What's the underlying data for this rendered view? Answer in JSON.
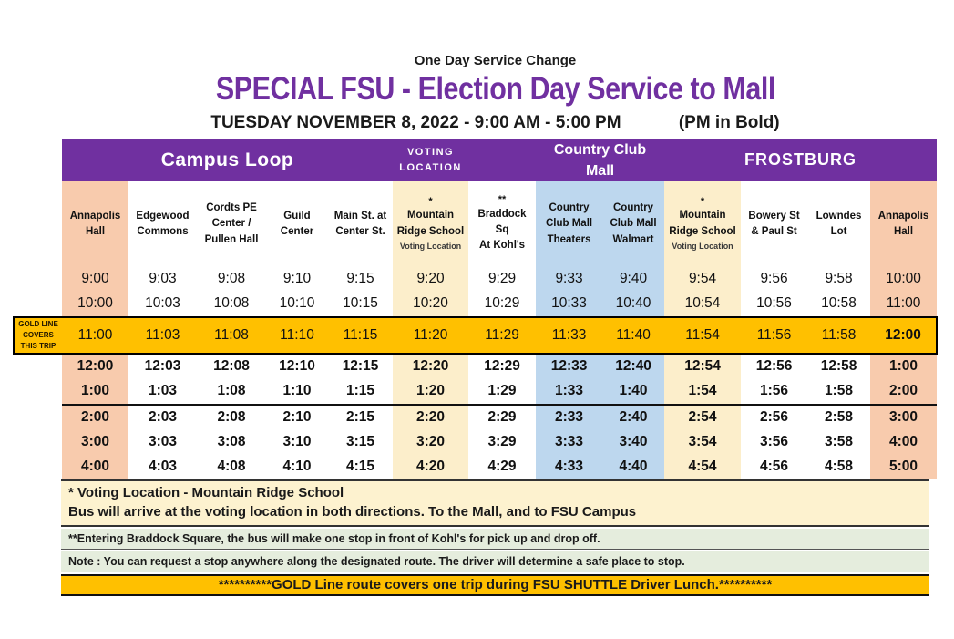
{
  "header": {
    "kicker": "One Day Service Change",
    "title": "SPECIAL FSU - Election Day Service to Mall",
    "date_line": "TUESDAY NOVEMBER 8, 2022 - 9:00 AM - 5:00 PM",
    "pm_note": "(PM in Bold)"
  },
  "colors": {
    "header_purple": "#7030A0",
    "title_purple": "#7030A0",
    "gold": "#FFC000",
    "peach_column": "#F8CBAD",
    "cream_column": "#FCEECB",
    "mall_blue_column": "#BDD7EE",
    "note_cream": "#FDF2CF",
    "note_green": "#E5EDDD"
  },
  "table": {
    "group_headers": [
      {
        "label": "Campus Loop",
        "span": 5
      },
      {
        "label": "VOTING LOCATION",
        "span": 1
      },
      {
        "label": "",
        "span": 1
      },
      {
        "label": "Country Club Mall",
        "span": 2
      },
      {
        "label": "FROSTBURG",
        "span": 4
      }
    ],
    "columns": [
      {
        "id": "annapolis-hall-depart",
        "lines": [
          "Annapolis",
          "Hall"
        ],
        "bg": "peach"
      },
      {
        "id": "edgewood-commons",
        "lines": [
          "Edgewood",
          "Commons"
        ],
        "bg": "white"
      },
      {
        "id": "cordts-pe-center-pullen-hall",
        "lines": [
          "Cordts PE",
          "Center /",
          "Pullen Hall"
        ],
        "bg": "white"
      },
      {
        "id": "guild-center",
        "lines": [
          "Guild",
          "Center"
        ],
        "bg": "white"
      },
      {
        "id": "main-st-at-center-st",
        "lines": [
          "Main St. at",
          "Center St."
        ],
        "bg": "white"
      },
      {
        "id": "mountain-ridge-school-outbound",
        "marker": "*",
        "lines": [
          "Mountain",
          "Ridge School"
        ],
        "sub": "Voting Location",
        "bg": "cream"
      },
      {
        "id": "braddock-sq-at-kohls",
        "marker": "**",
        "lines": [
          "Braddock",
          "Sq",
          "At Kohl's"
        ],
        "bg": "white"
      },
      {
        "id": "country-club-mall-theaters",
        "lines": [
          "Country",
          "Club Mall",
          "Theaters"
        ],
        "bg": "blue"
      },
      {
        "id": "country-club-mall-walmart",
        "lines": [
          "Country",
          "Club Mall",
          "Walmart"
        ],
        "bg": "blue"
      },
      {
        "id": "mountain-ridge-school-return",
        "marker": "*",
        "lines": [
          "Mountain",
          "Ridge School"
        ],
        "sub": "Voting Location",
        "bg": "cream"
      },
      {
        "id": "bowery-st-paul-st",
        "lines": [
          "Bowery St",
          "& Paul St"
        ],
        "bg": "white"
      },
      {
        "id": "lowndes-lot",
        "lines": [
          "Lowndes",
          "Lot"
        ],
        "bg": "white"
      },
      {
        "id": "annapolis-hall-arrive",
        "lines": [
          "Annapolis",
          "Hall"
        ],
        "bg": "peach"
      }
    ],
    "rows": [
      {
        "times": [
          "9:00",
          "9:03",
          "9:08",
          "9:10",
          "9:15",
          "9:20",
          "9:29",
          "9:33",
          "9:40",
          "9:54",
          "9:56",
          "9:58",
          "10:00"
        ],
        "bold": "none",
        "gold": false,
        "divider": false
      },
      {
        "times": [
          "10:00",
          "10:03",
          "10:08",
          "10:10",
          "10:15",
          "10:20",
          "10:29",
          "10:33",
          "10:40",
          "10:54",
          "10:56",
          "10:58",
          "11:00"
        ],
        "bold": "none",
        "gold": false,
        "divider": false
      },
      {
        "times": [
          "11:00",
          "11:03",
          "11:08",
          "11:10",
          "11:15",
          "11:20",
          "11:29",
          "11:33",
          "11:40",
          "11:54",
          "11:56",
          "11:58",
          "12:00"
        ],
        "bold": "last",
        "gold": true,
        "divider": false
      },
      {
        "times": [
          "12:00",
          "12:03",
          "12:08",
          "12:10",
          "12:15",
          "12:20",
          "12:29",
          "12:33",
          "12:40",
          "12:54",
          "12:56",
          "12:58",
          "1:00"
        ],
        "bold": "all",
        "gold": false,
        "divider": false
      },
      {
        "times": [
          "1:00",
          "1:03",
          "1:08",
          "1:10",
          "1:15",
          "1:20",
          "1:29",
          "1:33",
          "1:40",
          "1:54",
          "1:56",
          "1:58",
          "2:00"
        ],
        "bold": "all",
        "gold": false,
        "divider": true
      },
      {
        "times": [
          "2:00",
          "2:03",
          "2:08",
          "2:10",
          "2:15",
          "2:20",
          "2:29",
          "2:33",
          "2:40",
          "2:54",
          "2:56",
          "2:58",
          "3:00"
        ],
        "bold": "all",
        "gold": false,
        "divider": false
      },
      {
        "times": [
          "3:00",
          "3:03",
          "3:08",
          "3:10",
          "3:15",
          "3:20",
          "3:29",
          "3:33",
          "3:40",
          "3:54",
          "3:56",
          "3:58",
          "4:00"
        ],
        "bold": "all",
        "gold": false,
        "divider": false
      },
      {
        "times": [
          "4:00",
          "4:03",
          "4:08",
          "4:10",
          "4:15",
          "4:20",
          "4:29",
          "4:33",
          "4:40",
          "4:54",
          "4:56",
          "4:58",
          "5:00"
        ],
        "bold": "all",
        "gold": false,
        "divider": false
      }
    ],
    "gold_label_lines": [
      "GOLD LINE",
      "COVERS",
      "THIS TRIP"
    ]
  },
  "footnotes": {
    "voting_line1": "* Voting Location - Mountain Ridge School",
    "voting_line2": "Bus will arrive at the voting location in both directions.  To the Mall, and to FSU Campus",
    "braddock": "**Entering Braddock Square, the bus will make one stop in front of Kohl's for pick up and drop off.",
    "request_stop": "Note : You can request a stop anywhere along the designated route.  The driver will determine a safe place to stop.",
    "gold_line": "**********GOLD Line route covers one trip during FSU SHUTTLE Driver Lunch.**********"
  }
}
